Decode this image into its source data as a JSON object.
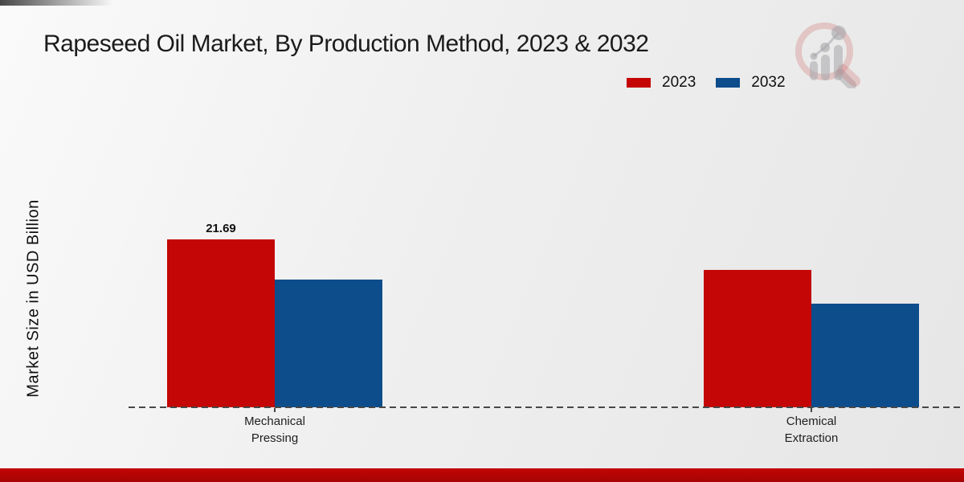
{
  "header": {
    "title": "Rapeseed Oil Market, By Production Method, 2023 & 2032"
  },
  "y_axis": {
    "label": "Market Size in USD Billion"
  },
  "icons": {
    "watermark": "magnifier-bar-chart-logo"
  },
  "colors": {
    "series_2023": "#c40606",
    "series_2032": "#0d4d8c",
    "baseline": "#474747",
    "footer_band": "#b10404"
  },
  "chart_data": {
    "type": "bar",
    "title": "Rapeseed Oil Market, By Production Method, 2023 & 2032",
    "xlabel": "",
    "ylabel": "Market Size in USD Billion",
    "categories": [
      "Mechanical\nPressing",
      "Chemical\nExtraction"
    ],
    "series": [
      {
        "name": "2023",
        "color": "#c40606",
        "values": [
          21.69,
          17.7
        ]
      },
      {
        "name": "2032",
        "color": "#0d4d8c",
        "values": [
          16.5,
          13.4
        ]
      }
    ],
    "annotations": [
      {
        "series": "2023",
        "category_index": 0,
        "text": "21.69"
      }
    ],
    "grid": false,
    "legend_position": "top-right",
    "baseline_style": "dashed"
  }
}
